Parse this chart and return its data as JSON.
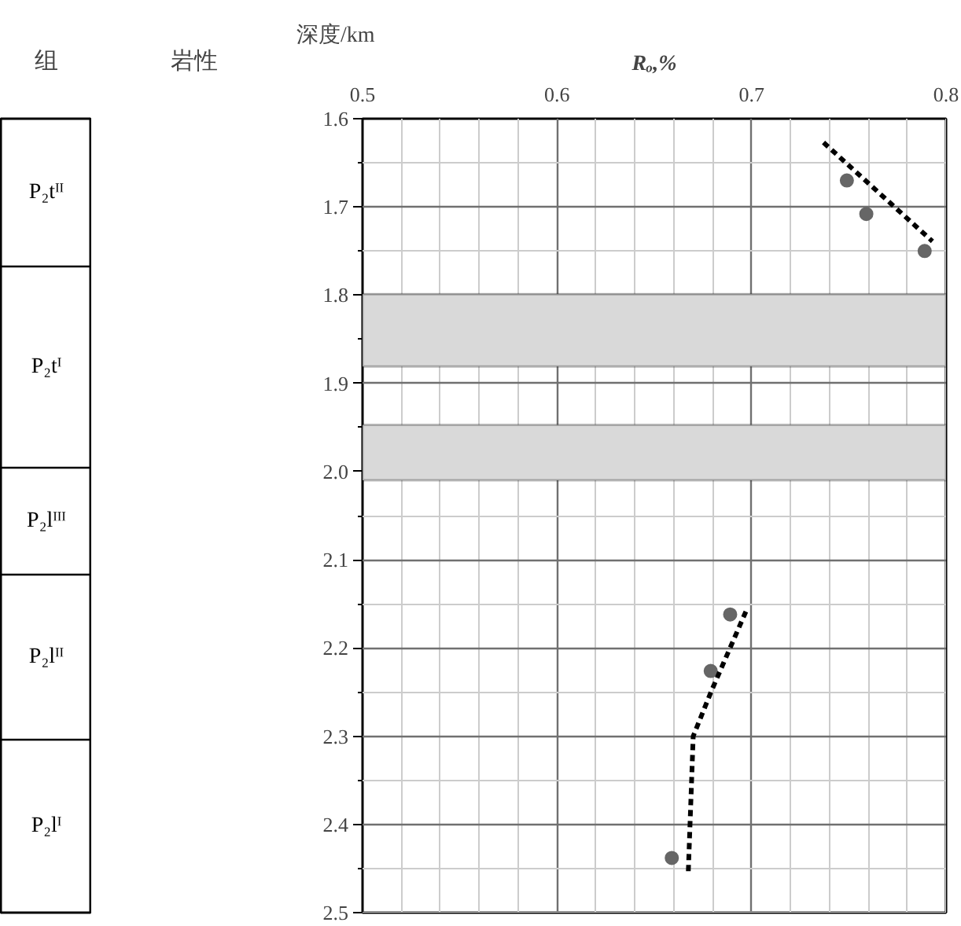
{
  "chart_data": {
    "type": "scatter",
    "xlabel": "Rₒ,%",
    "ylabel": "深度/km",
    "marker": "circle",
    "grid": true,
    "annotations": [
      "组",
      "岩性",
      "P₂tᴵᴵ",
      "P₂tᴵ",
      "P₂lᴵᴵᴵ",
      "P₂lᴵᴵ",
      "P₂lᴵ"
    ],
    "xlim": [
      0.5,
      0.8
    ],
    "ylim": [
      2.5,
      1.6
    ],
    "xticks": [
      0.5,
      0.6,
      0.7,
      0.8
    ],
    "yticks": [
      1.6,
      1.7,
      1.8,
      1.9,
      {
        "value": 2,
        "label": "2.0"
      },
      2.1,
      2.2,
      2.3,
      2.4,
      2.5
    ],
    "series": [
      {
        "type": "scatter",
        "color": "#666666",
        "x": [
          0.749,
          0.759,
          0.789,
          0.689,
          0.679,
          0.659
        ],
        "values": [
          1.67,
          1.708,
          1.75,
          2.162,
          2.226,
          2.438
        ]
      },
      {
        "type": "line",
        "color": "#000000",
        "line_style": "dashed",
        "marker": "none",
        "x": [
          0.737,
          0.793
        ],
        "values": [
          1.627,
          1.739
        ]
      },
      {
        "type": "line",
        "color": "#000000",
        "line_style": "dashed",
        "marker": "none",
        "x": [
          0.6675,
          0.67,
          0.6795,
          0.698
        ],
        "values": [
          2.453,
          2.3,
          2.248,
          2.154
        ]
      }
    ],
    "bands": [
      {
        "axis": "y",
        "from": 1.799,
        "to": 1.881,
        "color": "#d9d9d9"
      },
      {
        "axis": "y",
        "from": 1.947,
        "to": 2.01,
        "color": "#d9d9d9"
      }
    ]
  }
}
